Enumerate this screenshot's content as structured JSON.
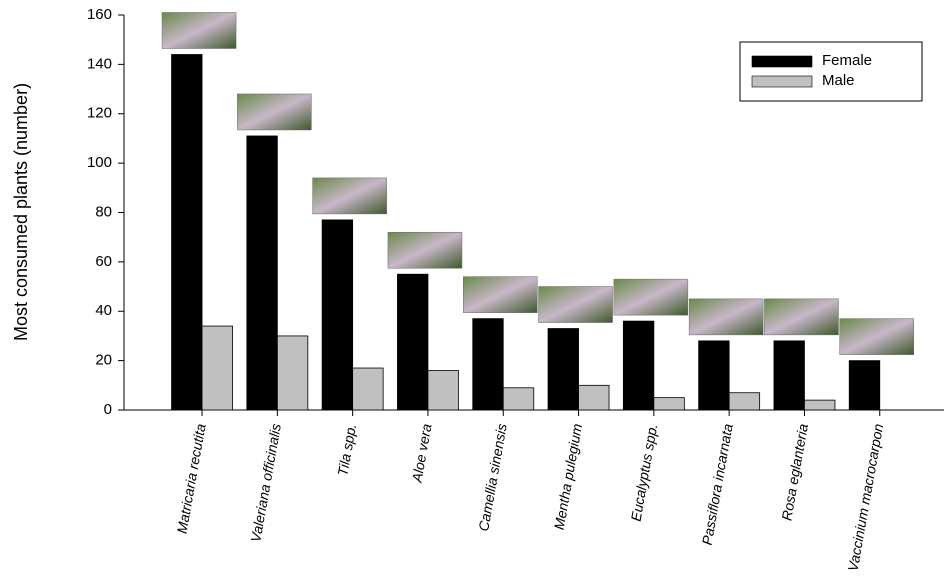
{
  "chart_data": {
    "type": "bar",
    "y_label": "Most consumed plants (number)",
    "categories": [
      "Matricaria recutita",
      "Valeriana officinalis",
      "Tila spp.",
      "Aloe vera",
      "Camellia sinensis",
      "Mentha pulegium",
      "Eucalyptus spp.",
      "Passiflora incarnata",
      "Rosa eglanteria",
      "Vaccinium macrocarpon"
    ],
    "series": [
      {
        "name": "Female",
        "color": "#000000",
        "values": [
          144,
          111,
          77,
          55,
          37,
          33,
          36,
          28,
          28,
          20
        ]
      },
      {
        "name": "Male",
        "color": "#c0c0c0",
        "values": [
          34,
          30,
          17,
          16,
          9,
          10,
          5,
          7,
          4,
          0
        ]
      }
    ],
    "ylim": [
      0,
      160
    ],
    "yticks": [
      0,
      20,
      40,
      60,
      80,
      100,
      120,
      140,
      160
    ],
    "legend": "upper right"
  }
}
